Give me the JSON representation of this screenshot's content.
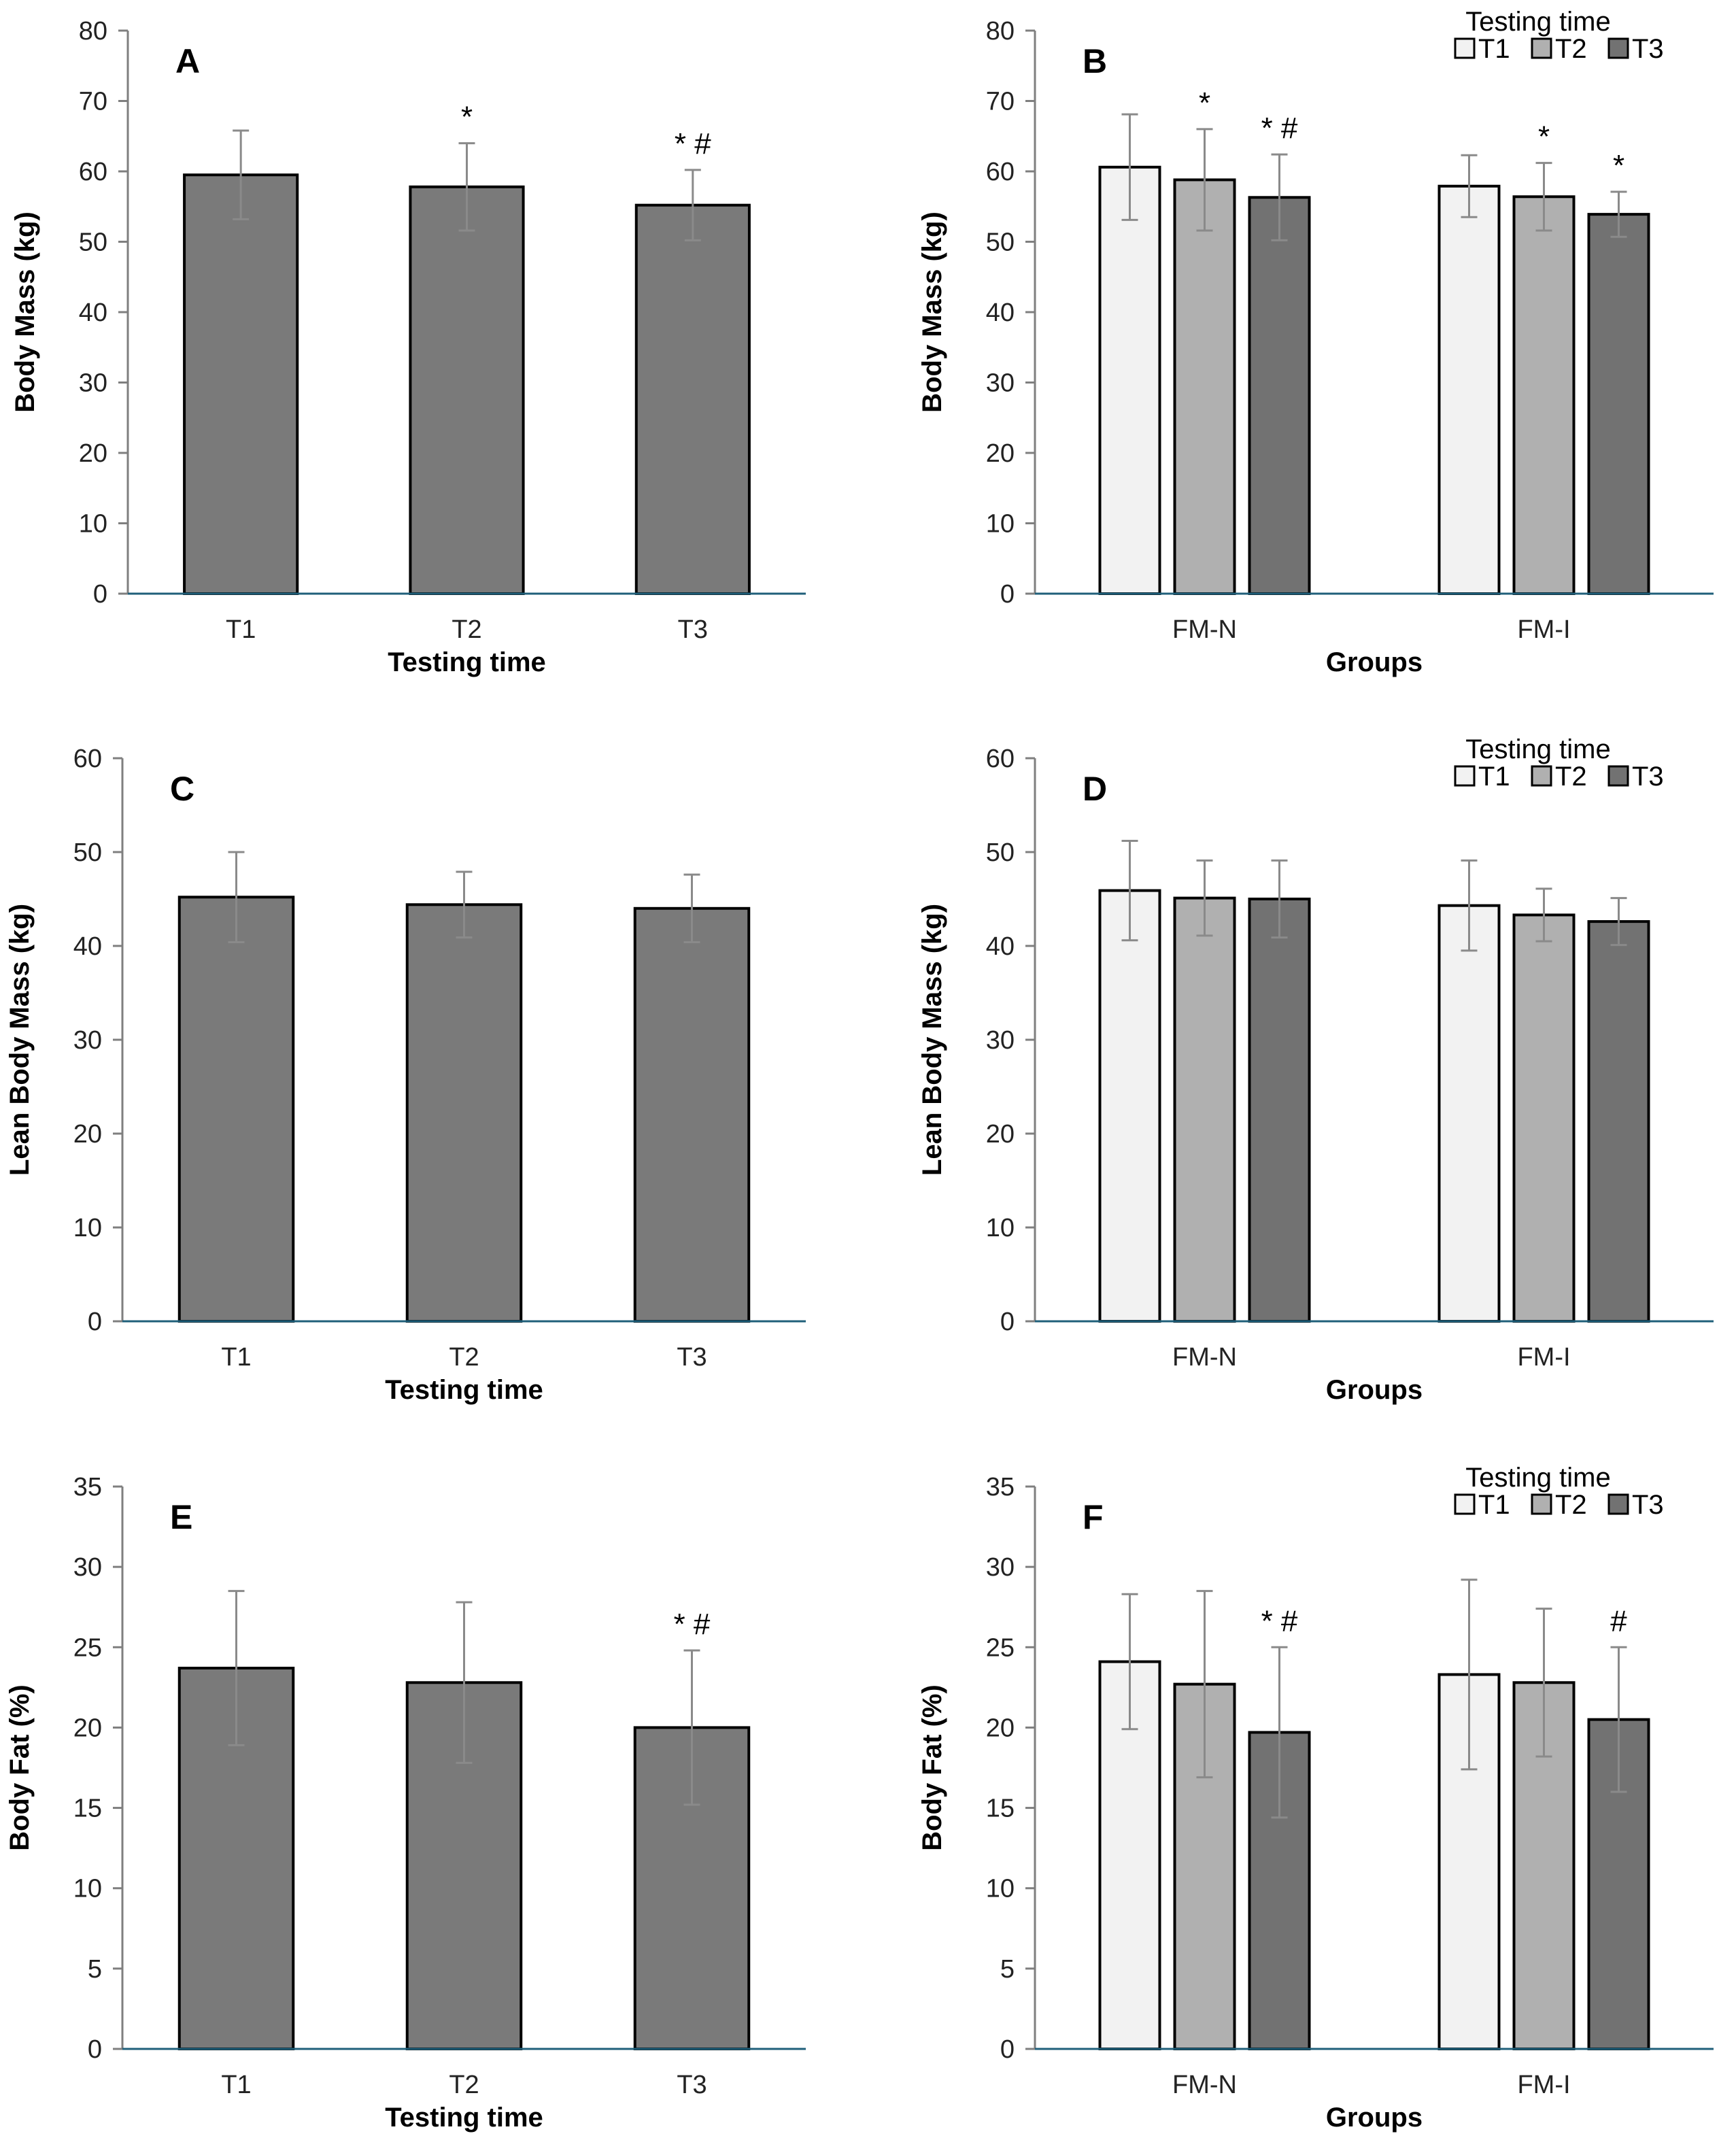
{
  "figure": {
    "legend_title": "Testing time",
    "colors": {
      "single_bar": "#7a7a7a",
      "T1": "#f2f2f2",
      "T2": "#b0b0b0",
      "T3": "#727272",
      "axis": "#1f5f7a",
      "tick": "#7f7f7f",
      "error": "#8a8a8a"
    }
  },
  "chart_data": [
    {
      "id": "A",
      "type": "bar",
      "label": "A",
      "ylabel": "Body Mass (kg)",
      "xlabel": "Testing time",
      "ylim": [
        0,
        80
      ],
      "yticks": [
        0,
        10,
        20,
        30,
        40,
        50,
        60,
        70,
        80
      ],
      "categories": [
        "T1",
        "T2",
        "T3"
      ],
      "values": [
        59.5,
        57.8,
        55.2
      ],
      "errors": [
        6.3,
        6.2,
        5.0
      ],
      "annotations": [
        "",
        "*",
        "* #"
      ]
    },
    {
      "id": "B",
      "type": "bar",
      "label": "B",
      "ylabel": "Body Mass (kg)",
      "xlabel": "Groups",
      "ylim": [
        0,
        80
      ],
      "yticks": [
        0,
        10,
        20,
        30,
        40,
        50,
        60,
        70,
        80
      ],
      "legend": true,
      "categories": [
        "FM-N",
        "FM-I"
      ],
      "series": [
        {
          "name": "T1",
          "values": [
            60.6,
            57.9
          ],
          "errors": [
            7.5,
            4.4
          ],
          "annotations": [
            "",
            ""
          ]
        },
        {
          "name": "T2",
          "values": [
            58.8,
            56.4
          ],
          "errors": [
            7.2,
            4.8
          ],
          "annotations": [
            "*",
            "*"
          ]
        },
        {
          "name": "T3",
          "values": [
            56.3,
            53.9
          ],
          "errors": [
            6.1,
            3.2
          ],
          "annotations": [
            "* #",
            "*"
          ]
        }
      ]
    },
    {
      "id": "C",
      "type": "bar",
      "label": "C",
      "ylabel": "Lean Body Mass (kg)",
      "xlabel": "Testing time",
      "ylim": [
        0,
        60
      ],
      "yticks": [
        0,
        10,
        20,
        30,
        40,
        50,
        60
      ],
      "categories": [
        "T1",
        "T2",
        "T3"
      ],
      "values": [
        45.2,
        44.4,
        44.0
      ],
      "errors": [
        4.8,
        3.5,
        3.6
      ],
      "annotations": [
        "",
        "",
        ""
      ]
    },
    {
      "id": "D",
      "type": "bar",
      "label": "D",
      "ylabel": "Lean Body Mass (kg)",
      "xlabel": "Groups",
      "ylim": [
        0,
        60
      ],
      "yticks": [
        0,
        10,
        20,
        30,
        40,
        50,
        60
      ],
      "legend": true,
      "categories": [
        "FM-N",
        "FM-I"
      ],
      "series": [
        {
          "name": "T1",
          "values": [
            45.9,
            44.3
          ],
          "errors": [
            5.3,
            4.8
          ],
          "annotations": [
            "",
            ""
          ]
        },
        {
          "name": "T2",
          "values": [
            45.1,
            43.3
          ],
          "errors": [
            4.0,
            2.8
          ],
          "annotations": [
            "",
            ""
          ]
        },
        {
          "name": "T3",
          "values": [
            45.0,
            42.6
          ],
          "errors": [
            4.1,
            2.5
          ],
          "annotations": [
            "",
            ""
          ]
        }
      ]
    },
    {
      "id": "E",
      "type": "bar",
      "label": "E",
      "ylabel": "Body Fat (%)",
      "xlabel": "Testing time",
      "ylim": [
        0,
        35
      ],
      "yticks": [
        0,
        5,
        10,
        15,
        20,
        25,
        30,
        35
      ],
      "categories": [
        "T1",
        "T2",
        "T3"
      ],
      "values": [
        23.7,
        22.8,
        20.0
      ],
      "errors": [
        4.8,
        5.0,
        4.8
      ],
      "annotations": [
        "",
        "",
        "* #"
      ]
    },
    {
      "id": "F",
      "type": "bar",
      "label": "F",
      "ylabel": "Body Fat (%)",
      "xlabel": "Groups",
      "ylim": [
        0,
        35
      ],
      "yticks": [
        0,
        5,
        10,
        15,
        20,
        25,
        30,
        35
      ],
      "legend": true,
      "categories": [
        "FM-N",
        "FM-I"
      ],
      "series": [
        {
          "name": "T1",
          "values": [
            24.1,
            23.3
          ],
          "errors": [
            4.2,
            5.9
          ],
          "annotations": [
            "",
            ""
          ]
        },
        {
          "name": "T2",
          "values": [
            22.7,
            22.8
          ],
          "errors": [
            5.8,
            4.6
          ],
          "annotations": [
            "",
            ""
          ]
        },
        {
          "name": "T3",
          "values": [
            19.7,
            20.5
          ],
          "errors": [
            5.3,
            4.5
          ],
          "annotations": [
            "* #",
            "#"
          ]
        }
      ]
    }
  ]
}
